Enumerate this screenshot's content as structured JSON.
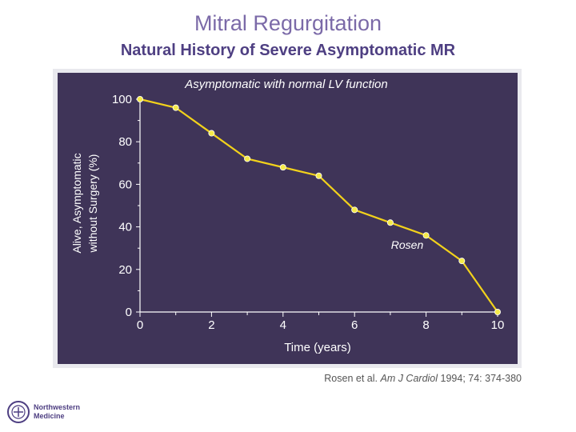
{
  "slide": {
    "title": "Mitral Regurgitation",
    "subtitle": "Natural History of Severe Asymptomatic MR"
  },
  "chart_data": {
    "type": "line",
    "title": "Asymptomatic with normal LV function",
    "xlabel": "Time (years)",
    "ylabel_line1": "Alive, Asymptomatic",
    "ylabel_line2": "without Surgery (%)",
    "xlim": [
      0,
      10
    ],
    "ylim": [
      0,
      100
    ],
    "x_ticks": [
      0,
      2,
      4,
      6,
      8,
      10
    ],
    "y_ticks": [
      0,
      20,
      40,
      60,
      80,
      100
    ],
    "series": [
      {
        "x": [
          0,
          1,
          2,
          3,
          4,
          5,
          6,
          7,
          8,
          9,
          10
        ],
        "y": [
          100,
          96,
          84,
          72,
          68,
          64,
          48,
          42,
          36,
          24,
          0
        ]
      }
    ],
    "annotation": "Rosen",
    "colors": {
      "line": "#f2d21b",
      "marker": "#f5ea4a",
      "background": "#3f3458",
      "text": "#ffffff"
    },
    "grid": false
  },
  "citation": {
    "authors": "Rosen et al.",
    "journal": "Am J Cardiol",
    "details": "1994; 74: 374-380"
  },
  "logo": {
    "line1": "Northwestern",
    "line2": "Medicine"
  }
}
